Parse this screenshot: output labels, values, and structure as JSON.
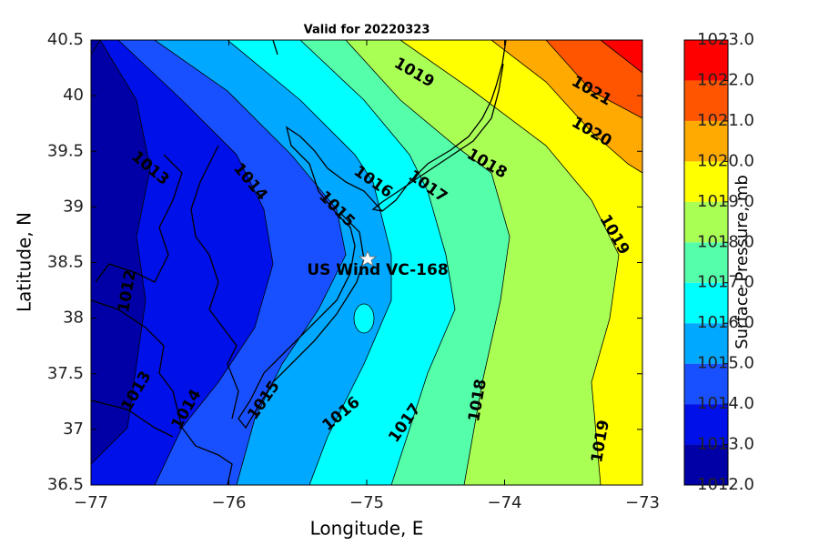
{
  "chart_data": {
    "type": "contour",
    "title": "Valid for 20220323",
    "xlabel": "Longitude, E",
    "ylabel": "Latitude, N",
    "colorbar_label": "Surface Pressure, mb",
    "annotation": "US Wind VC-168",
    "xlim": [
      -77,
      -73
    ],
    "xticks": [
      {
        "value": -77,
        "label": "−77"
      },
      {
        "value": -76,
        "label": "−76"
      },
      {
        "value": -75,
        "label": "−75"
      },
      {
        "value": -74,
        "label": "−74"
      },
      {
        "value": -73,
        "label": "−73"
      }
    ],
    "ylim": [
      36.5,
      40.5
    ],
    "yticks": [
      36.5,
      37,
      37.5,
      38,
      38.5,
      39,
      39.5,
      40,
      40.5
    ],
    "levels": [
      1012,
      1013,
      1014,
      1015,
      1016,
      1017,
      1018,
      1019,
      1020,
      1021,
      1022,
      1023
    ],
    "colors": [
      "#0000a6",
      "#0010e8",
      "#1850ff",
      "#00a8ff",
      "#00ffff",
      "#55ffaa",
      "#aaff55",
      "#ffff00",
      "#ffaa00",
      "#ff5500",
      "#ff0000"
    ],
    "colorbar_ticks": [
      {
        "value": 1012,
        "label": "1012.0"
      },
      {
        "value": 1013,
        "label": "1013.0"
      },
      {
        "value": 1014,
        "label": "1014.0"
      },
      {
        "value": 1015,
        "label": "1015.0"
      },
      {
        "value": 1016,
        "label": "1016.0"
      },
      {
        "value": 1017,
        "label": "1017.0"
      },
      {
        "value": 1018,
        "label": "1018.0"
      },
      {
        "value": 1019,
        "label": "1019.0"
      },
      {
        "value": 1020,
        "label": "1020.0"
      },
      {
        "value": 1021,
        "label": "1021.0"
      },
      {
        "value": 1022,
        "label": "1022.0"
      },
      {
        "value": 1023,
        "label": "1023.0"
      }
    ],
    "contour_labels": [
      1019,
      1021,
      1020,
      1018,
      1019,
      1016,
      1017,
      1015,
      1014,
      1013,
      1012,
      1013,
      1014,
      1015,
      1016,
      1017,
      1018,
      1019
    ]
  }
}
